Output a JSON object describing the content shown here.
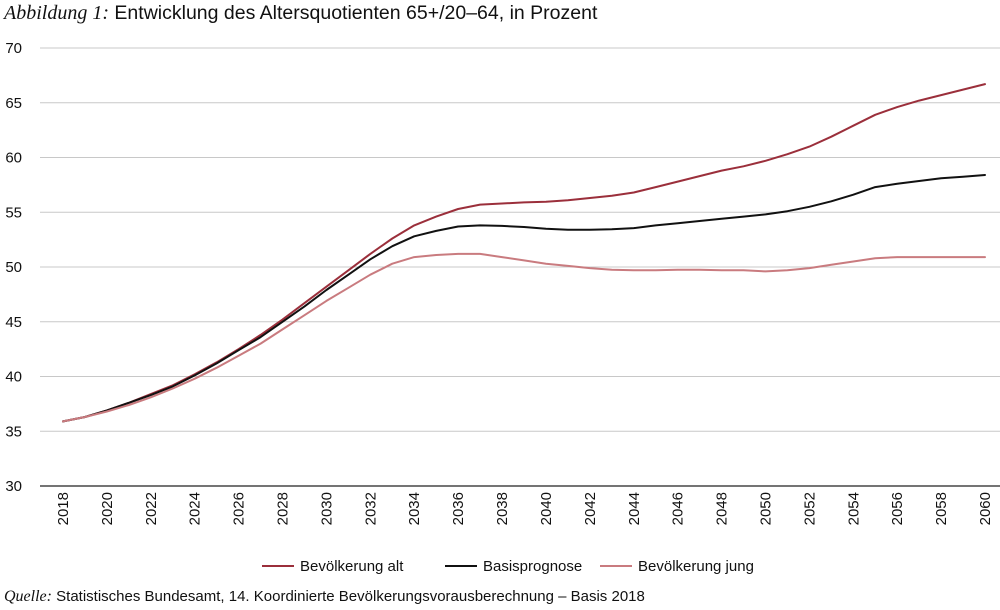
{
  "title": {
    "prefix": "Abbildung 1:",
    "text": "Entwicklung des Altersquotienten 65+/20–64, in Prozent"
  },
  "source": {
    "prefix": "Quelle:",
    "text": "Statistisches Bundesamt, 14. Koordinierte Bevölkerungsvorausberechnung – Basis 2018"
  },
  "chart_data": {
    "type": "line",
    "title": "Entwicklung des Altersquotienten 65+/20–64, in Prozent",
    "xlabel": "",
    "ylabel": "",
    "ylim": [
      30,
      70
    ],
    "yticks": [
      30,
      35,
      40,
      45,
      50,
      55,
      60,
      65,
      70
    ],
    "xlim": [
      2018,
      2060
    ],
    "xticks": [
      2018,
      2020,
      2022,
      2024,
      2026,
      2028,
      2030,
      2032,
      2034,
      2036,
      2038,
      2040,
      2042,
      2044,
      2046,
      2048,
      2050,
      2052,
      2054,
      2056,
      2058,
      2060
    ],
    "grid": "horizontal",
    "legend_position": "bottom",
    "x": [
      2018,
      2019,
      2020,
      2021,
      2022,
      2023,
      2024,
      2025,
      2026,
      2027,
      2028,
      2029,
      2030,
      2031,
      2032,
      2033,
      2034,
      2035,
      2036,
      2037,
      2038,
      2039,
      2040,
      2041,
      2042,
      2043,
      2044,
      2045,
      2046,
      2047,
      2048,
      2049,
      2050,
      2051,
      2052,
      2053,
      2054,
      2055,
      2056,
      2057,
      2058,
      2059,
      2060
    ],
    "series": [
      {
        "name": "Bevölkerung alt",
        "color": "#9b2f3b",
        "values": [
          35.9,
          36.3,
          36.9,
          37.6,
          38.4,
          39.2,
          40.2,
          41.3,
          42.5,
          43.8,
          45.2,
          46.7,
          48.2,
          49.7,
          51.2,
          52.6,
          53.8,
          54.6,
          55.3,
          55.7,
          55.8,
          55.9,
          55.95,
          56.1,
          56.3,
          56.5,
          56.8,
          57.3,
          57.8,
          58.3,
          58.8,
          59.2,
          59.7,
          60.3,
          61.0,
          61.9,
          62.9,
          63.9,
          64.6,
          65.2,
          65.7,
          66.2,
          66.7
        ]
      },
      {
        "name": "Basisprognose",
        "color": "#111111",
        "values": [
          35.9,
          36.3,
          36.9,
          37.6,
          38.3,
          39.1,
          40.1,
          41.2,
          42.4,
          43.6,
          45.0,
          46.4,
          47.9,
          49.3,
          50.7,
          51.9,
          52.8,
          53.3,
          53.7,
          53.8,
          53.75,
          53.65,
          53.5,
          53.4,
          53.4,
          53.45,
          53.55,
          53.8,
          54.0,
          54.2,
          54.4,
          54.6,
          54.8,
          55.1,
          55.5,
          56.0,
          56.6,
          57.3,
          57.6,
          57.85,
          58.1,
          58.25,
          58.4
        ]
      },
      {
        "name": "Bevölkerung jung",
        "color": "#c97b7f",
        "values": [
          35.9,
          36.3,
          36.8,
          37.4,
          38.1,
          38.9,
          39.8,
          40.8,
          41.9,
          43.0,
          44.3,
          45.6,
          46.9,
          48.1,
          49.3,
          50.3,
          50.9,
          51.1,
          51.2,
          51.2,
          50.9,
          50.6,
          50.3,
          50.1,
          49.9,
          49.75,
          49.7,
          49.7,
          49.75,
          49.75,
          49.7,
          49.7,
          49.6,
          49.7,
          49.9,
          50.2,
          50.5,
          50.8,
          50.9,
          50.9,
          50.9,
          50.9,
          50.9
        ]
      }
    ]
  }
}
